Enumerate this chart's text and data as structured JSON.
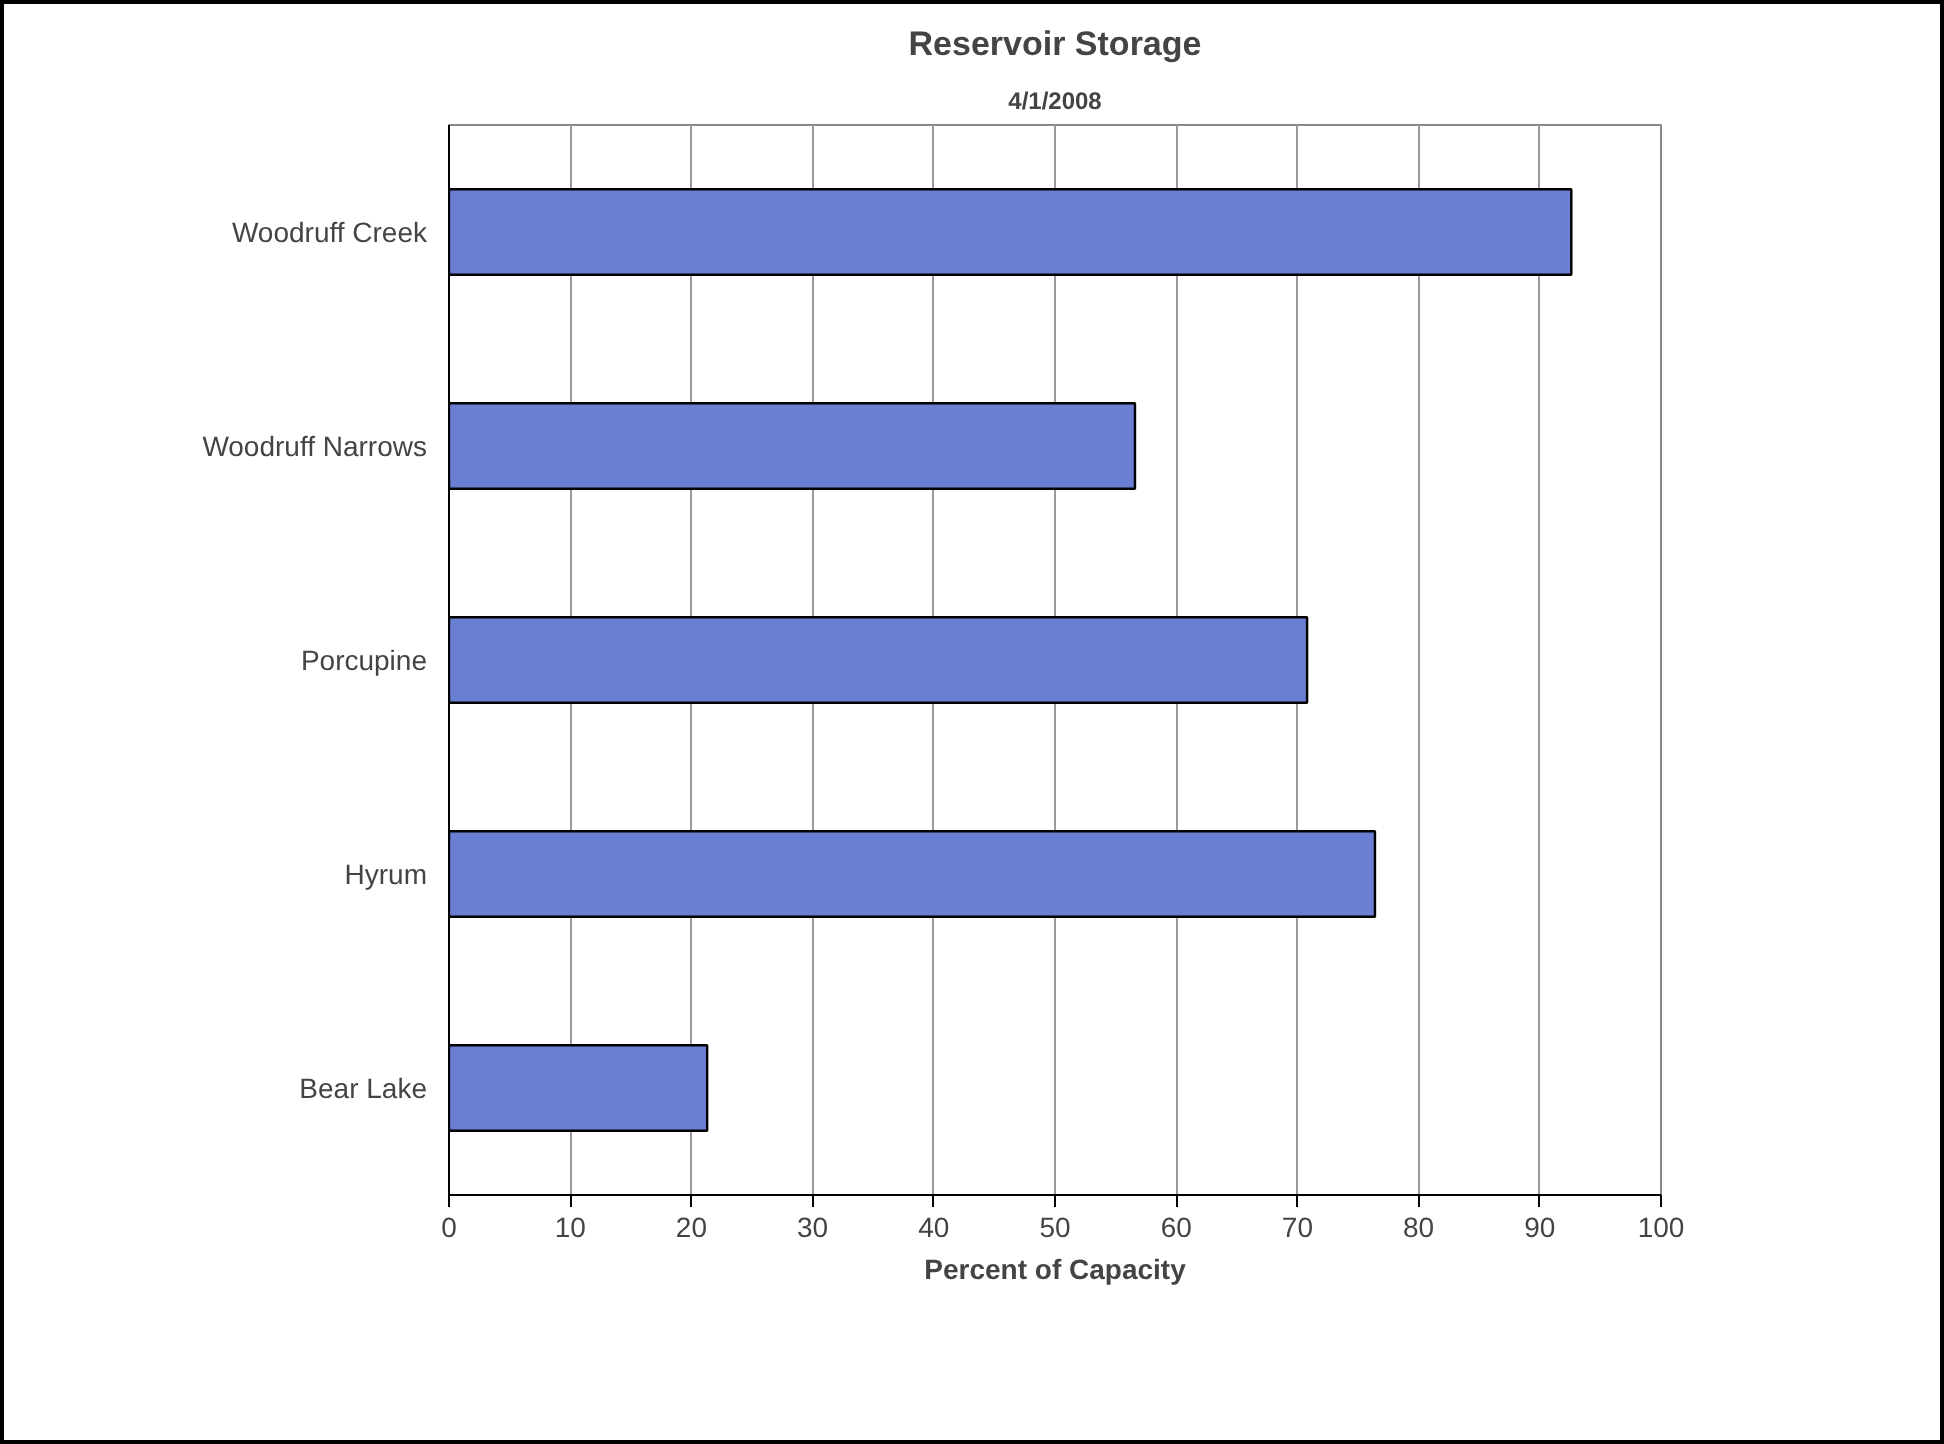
{
  "chart_data": {
    "type": "bar",
    "orientation": "horizontal",
    "title": "Reservoir Storage",
    "subtitle": "4/1/2008",
    "xlabel": "Percent of Capacity",
    "categories": [
      "Woodruff Creek",
      "Woodruff Narrows",
      "Porcupine",
      "Hyrum",
      "Bear Lake"
    ],
    "values": [
      92.6,
      56.6,
      70.8,
      76.4,
      21.3
    ],
    "color": "#6a7fd2",
    "xlim": [
      0,
      100
    ],
    "xticks": [
      0,
      10,
      20,
      30,
      40,
      50,
      60,
      70,
      80,
      90,
      100
    ],
    "grid": "x"
  }
}
